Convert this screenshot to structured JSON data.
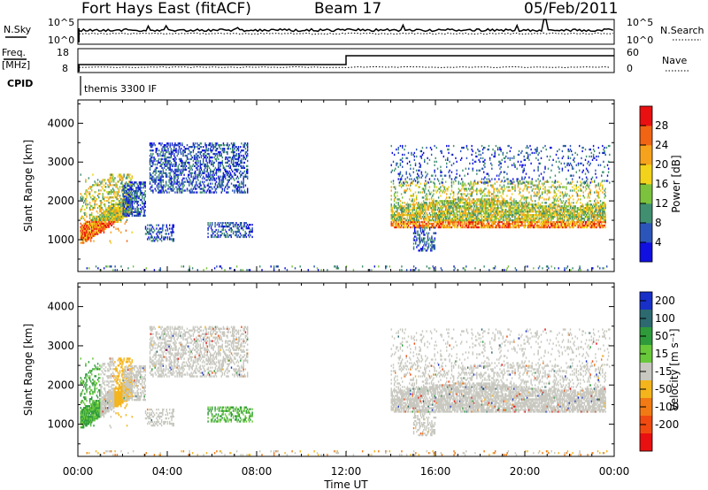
{
  "header": {
    "station": "Fort Hays East (fitACF)",
    "beam": "Beam 17",
    "date": "05/Feb/2011"
  },
  "labels": {
    "nsky": "N.Sky",
    "nsearch": "N.Search",
    "freq_line1": "Freq.",
    "freq_line2": "[MHz]",
    "nave": "Nave",
    "cpid": "CPID",
    "cpid_value": "themis 3300 IF"
  },
  "noise_panel": {
    "left_ticks": [
      "10^5",
      "10^0"
    ],
    "right_ticks": [
      "10^5",
      "10^0"
    ]
  },
  "freq_panel": {
    "left_ticks": [
      "18",
      "8"
    ],
    "right_ticks": [
      "60",
      "0"
    ]
  },
  "chart_data": [
    {
      "type": "heatmap",
      "name": "power",
      "ylabel": "Slant Range [km]",
      "xlabel": "",
      "ylim": [
        180,
        4600
      ],
      "yticks": [
        1000,
        2000,
        3000,
        4000
      ],
      "x_ticks": [
        "00:00",
        "04:00",
        "08:00",
        "12:00",
        "16:00",
        "20:00",
        "00:00"
      ],
      "colorbar": {
        "label": "Power [dB]",
        "ticks": [
          "4",
          "8",
          "12",
          "16",
          "20",
          "24",
          "28"
        ],
        "colors": [
          "#1010e0",
          "#2b55b8",
          "#3f8f70",
          "#7cc23c",
          "#f2d21a",
          "#f6a21c",
          "#f06414",
          "#e81010"
        ]
      }
    },
    {
      "type": "heatmap",
      "name": "velocity",
      "ylabel": "Slant Range [km]",
      "xlabel": "Time UT",
      "ylim": [
        180,
        4600
      ],
      "yticks": [
        1000,
        2000,
        3000,
        4000
      ],
      "x_ticks": [
        "00:00",
        "04:00",
        "08:00",
        "12:00",
        "16:00",
        "20:00",
        "00:00"
      ],
      "colorbar": {
        "label": "Velocity [m s⁻¹]",
        "ticks": [
          "200",
          "100",
          "50",
          "15",
          "-15",
          "-50",
          "-100",
          "-200"
        ],
        "colors": [
          "#1830c8",
          "#2c6a70",
          "#2e9a3a",
          "#68c83a",
          "#c8c8c0",
          "#f4b41c",
          "#f27a14",
          "#f04a10",
          "#e81010"
        ]
      }
    }
  ]
}
